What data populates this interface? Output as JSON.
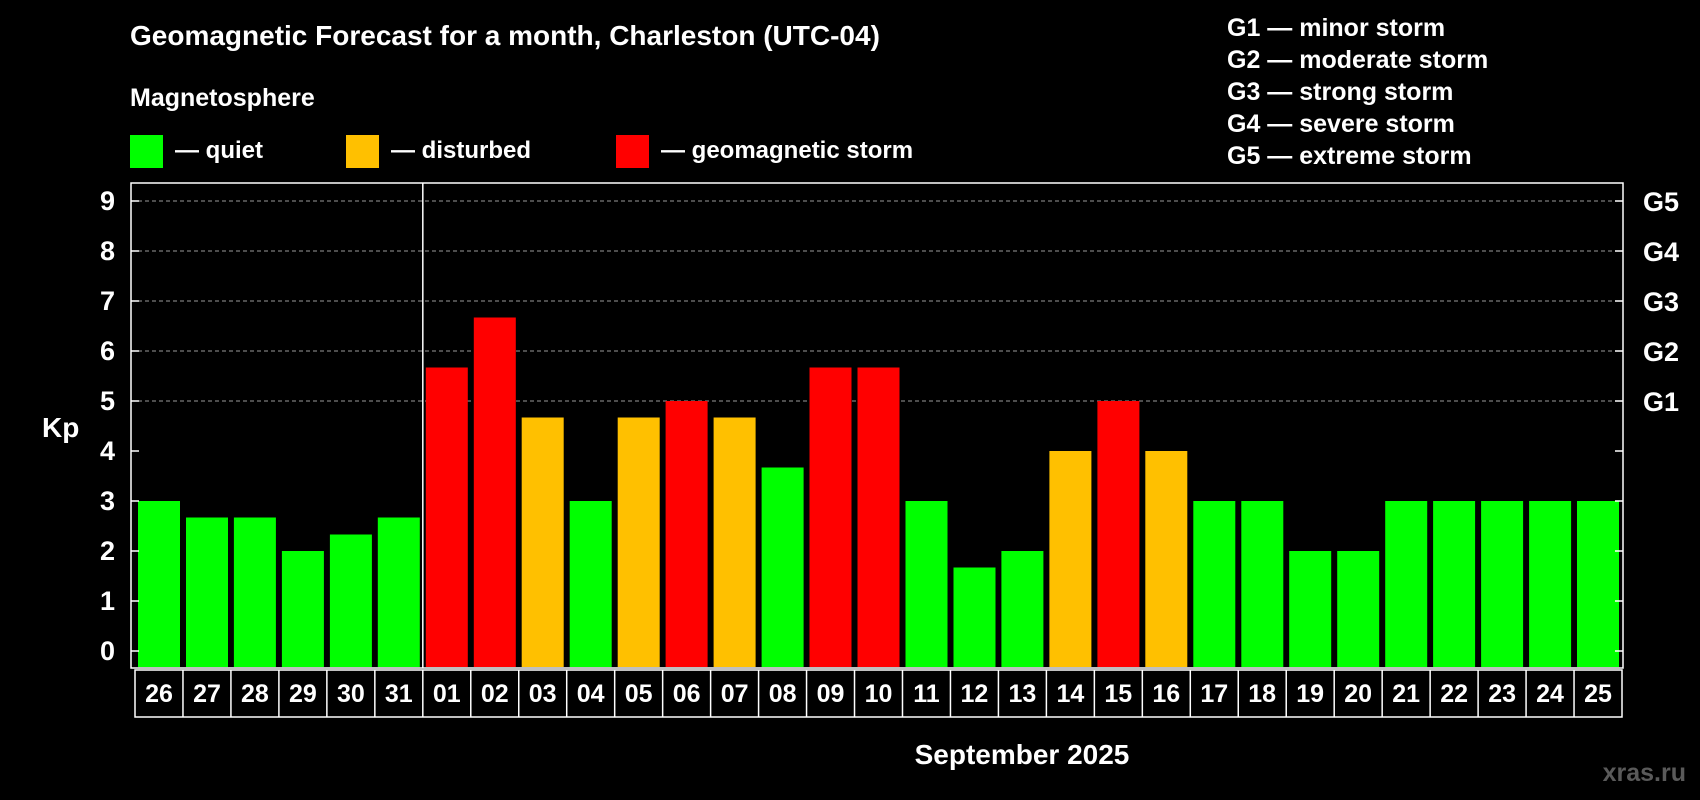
{
  "title": "Geomagnetic Forecast for a month, Charleston (UTC-04)",
  "subtitle": "Magnetosphere",
  "legend": [
    {
      "label": "— quiet",
      "color": "#00ff00"
    },
    {
      "label": "— disturbed",
      "color": "#ffc000"
    },
    {
      "label": "— geomagnetic storm",
      "color": "#ff0000"
    }
  ],
  "storm_legend": [
    "G1 — minor storm",
    "G2 — moderate storm",
    "G3 — strong storm",
    "G4 — severe storm",
    "G5 — extreme storm"
  ],
  "watermark": "xras.ru",
  "chart_data": {
    "type": "bar",
    "title": "Geomagnetic Forecast for a month, Charleston (UTC-04)",
    "ylabel": "Kp",
    "xlabel": "September 2025",
    "ylim": [
      0,
      9
    ],
    "yticks": [
      0,
      1,
      2,
      3,
      4,
      5,
      6,
      7,
      8,
      9
    ],
    "right_axis_labels": [
      {
        "value": 5,
        "label": "G1"
      },
      {
        "value": 6,
        "label": "G2"
      },
      {
        "value": 7,
        "label": "G3"
      },
      {
        "value": 8,
        "label": "G4"
      },
      {
        "value": 9,
        "label": "G5"
      }
    ],
    "grid": "dashed horizontal at 5, 6, 7, 8, 9",
    "month_boundary_after": "31",
    "categories": [
      "26",
      "27",
      "28",
      "29",
      "30",
      "31",
      "01",
      "02",
      "03",
      "04",
      "05",
      "06",
      "07",
      "08",
      "09",
      "10",
      "11",
      "12",
      "13",
      "14",
      "15",
      "16",
      "17",
      "18",
      "19",
      "20",
      "21",
      "22",
      "23",
      "24",
      "25"
    ],
    "values": [
      3,
      2.67,
      2.67,
      2,
      2.33,
      2.67,
      5.67,
      6.67,
      4.67,
      3,
      4.67,
      5,
      4.67,
      3.67,
      5.67,
      5.67,
      3,
      1.67,
      2,
      4,
      5,
      4,
      3,
      3,
      2,
      2,
      3,
      3,
      3,
      3,
      3
    ],
    "status": [
      "quiet",
      "quiet",
      "quiet",
      "quiet",
      "quiet",
      "quiet",
      "storm",
      "storm",
      "disturbed",
      "quiet",
      "disturbed",
      "storm",
      "disturbed",
      "quiet",
      "storm",
      "storm",
      "quiet",
      "quiet",
      "quiet",
      "disturbed",
      "storm",
      "disturbed",
      "quiet",
      "quiet",
      "quiet",
      "quiet",
      "quiet",
      "quiet",
      "quiet",
      "quiet",
      "quiet"
    ],
    "colors": {
      "quiet": "#00ff00",
      "disturbed": "#ffc000",
      "storm": "#ff0000"
    }
  }
}
